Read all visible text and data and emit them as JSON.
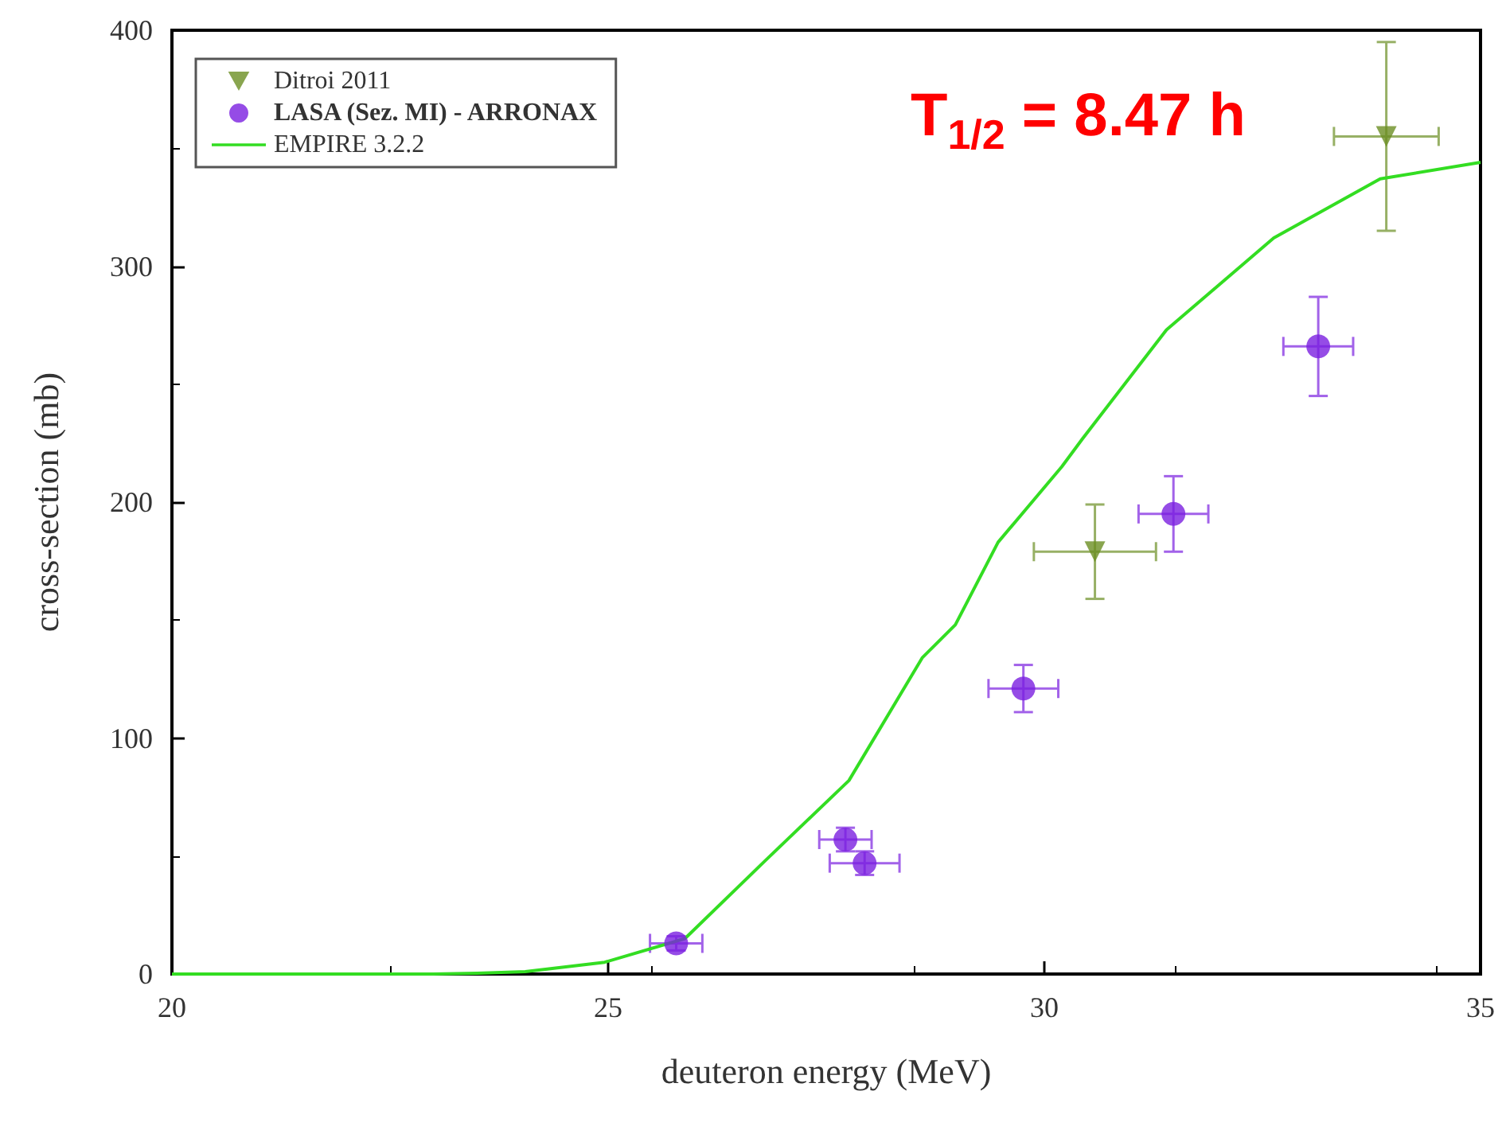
{
  "chart_data": {
    "type": "scatter",
    "xlabel": "deuteron energy (MeV)",
    "ylabel": "cross-section (mb)",
    "xlim": [
      20,
      35
    ],
    "xticks": [
      20,
      25,
      30,
      35
    ],
    "ylim": [
      0,
      400
    ],
    "yticks": [
      0,
      100,
      200,
      300,
      400
    ],
    "grid": false,
    "legend": "top left",
    "annotations": [
      "T$_{1/2}$ = 8.47 h"
    ],
    "series": [
      {
        "name": "Ditroi 2011",
        "marker": "triangle",
        "color": "#6b8e23",
        "x": [
          30.58,
          33.92
        ],
        "values": [
          179,
          355
        ],
        "errors": [
          20,
          40
        ],
        "xerrors": [
          0.7,
          0.6
        ]
      },
      {
        "name": "LASA (Sez. MI) - ARRONAX",
        "marker": "circle",
        "color": "#7a1fe0",
        "x": [
          25.78,
          27.72,
          27.94,
          29.76,
          31.48,
          33.14
        ],
        "values": [
          13,
          57,
          47,
          121,
          195,
          266
        ],
        "errors": [
          3,
          5,
          5,
          10,
          16,
          21
        ],
        "xerrors": [
          0.3,
          0.3,
          0.4,
          0.4,
          0.4,
          0.4
        ]
      },
      {
        "name": "EMPIRE 3.2.2",
        "type": "line",
        "marker": "none",
        "color": "#33dd22",
        "x": [
          20,
          22,
          23,
          23.5,
          24.05,
          24.96,
          25.88,
          26.8,
          27.76,
          28.6,
          28.98,
          29.47,
          30.2,
          30.44,
          31.4,
          32.63,
          33.85,
          35
        ],
        "values": [
          0,
          0,
          0,
          0.3,
          1,
          5,
          15,
          48,
          82,
          134,
          148,
          183,
          215,
          227,
          273,
          312,
          337,
          344
        ]
      }
    ]
  }
}
